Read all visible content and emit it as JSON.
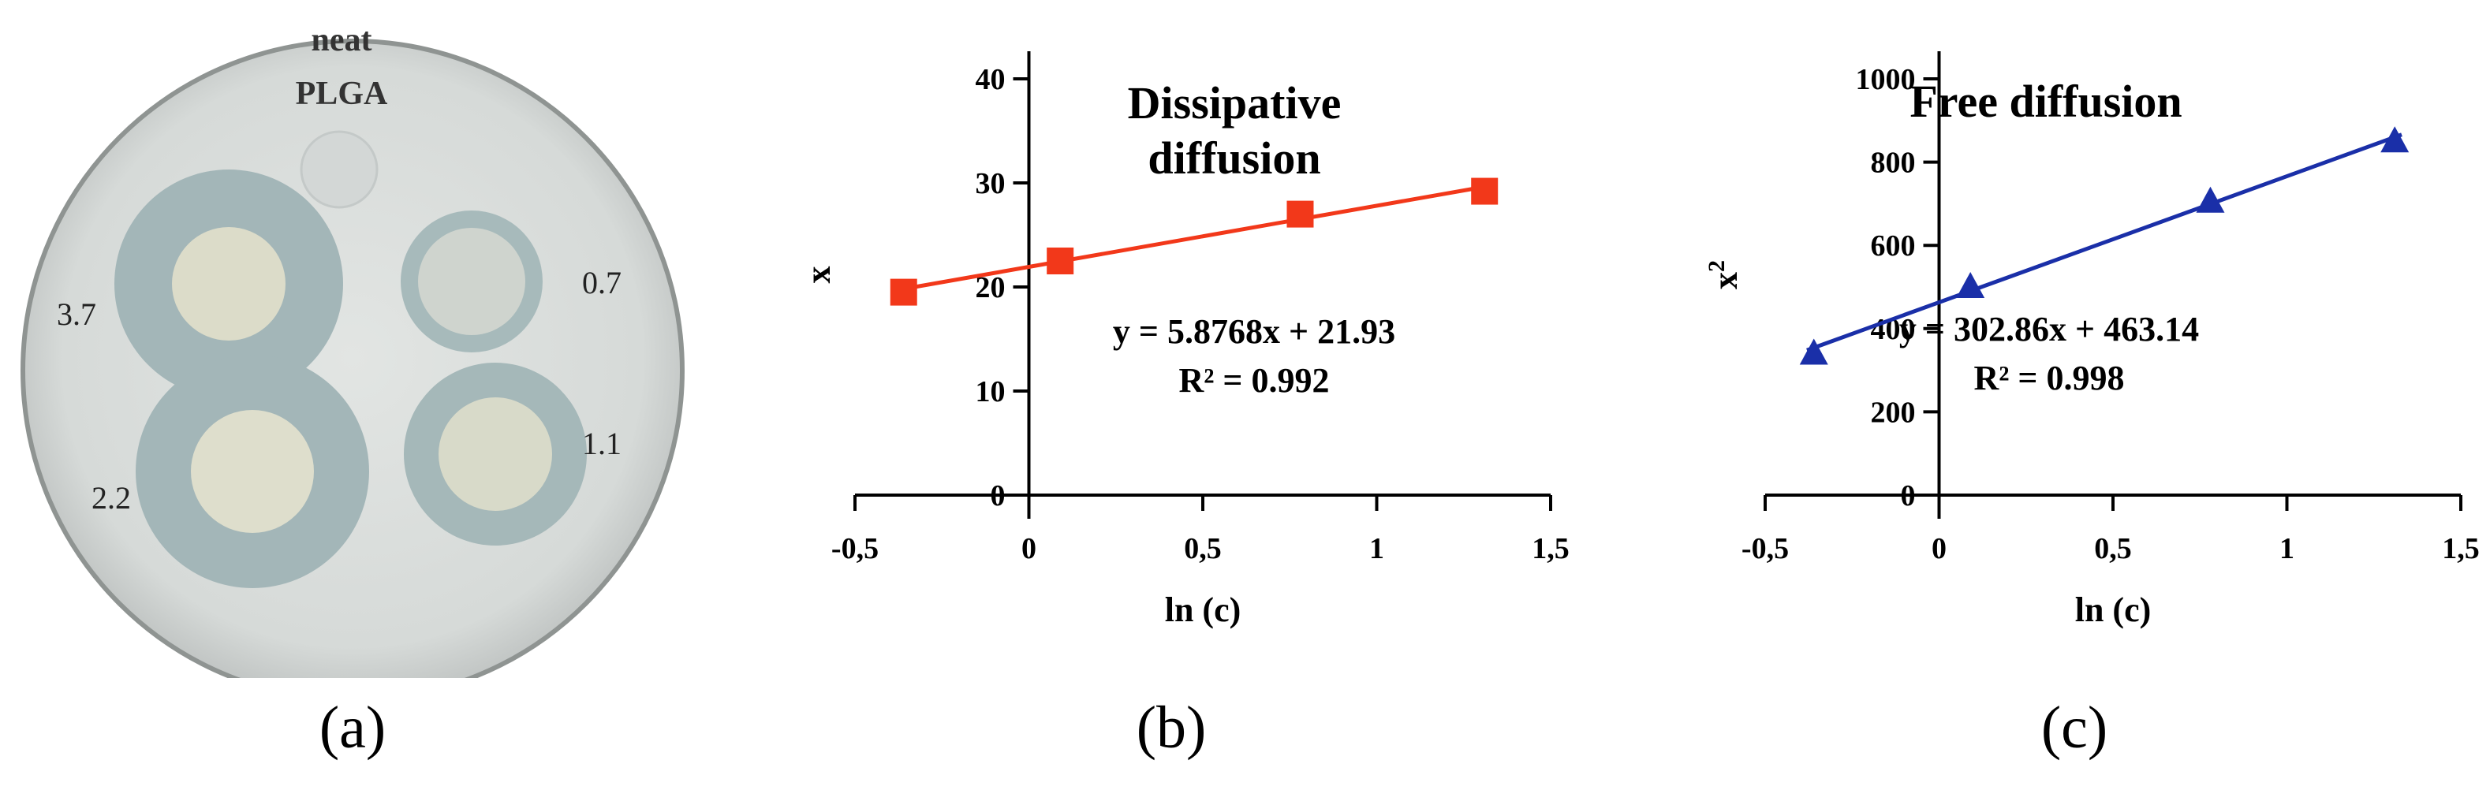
{
  "panel_a": {
    "caption": "(a)",
    "top_label_line1": "neat",
    "top_label_line2": "PLGA",
    "wells": [
      {
        "label": "3.7"
      },
      {
        "label": "0.7"
      },
      {
        "label": "2.2"
      },
      {
        "label": "1.1"
      }
    ]
  },
  "panel_b": {
    "caption": "(b)"
  },
  "panel_c": {
    "caption": "(c)"
  },
  "chart_data": [
    {
      "id": "b",
      "type": "scatter",
      "title_line1": "Dissipative",
      "title_line2": "diffusion",
      "xlabel": "ln (c)",
      "ylabel": "x",
      "ylabel_sup": "",
      "x_ticks": [
        "-0,5",
        "0",
        "0,5",
        "1",
        "1,5"
      ],
      "y_ticks": [
        "0",
        "10",
        "20",
        "30",
        "40"
      ],
      "xlim": [
        -0.5,
        1.5
      ],
      "ylim": [
        0,
        40
      ],
      "x": [
        -0.36,
        0.09,
        0.78,
        1.31
      ],
      "y": [
        19.5,
        22.5,
        27.0,
        29.2
      ],
      "trendline": {
        "slope": 5.8768,
        "intercept": 21.93
      },
      "equation": "y = 5.8768x + 21.93",
      "r2": "R² = 0.992",
      "marker": "square",
      "color": "#f2381a"
    },
    {
      "id": "c",
      "type": "scatter",
      "title_line1": "Free diffusion",
      "title_line2": "",
      "xlabel": "ln (c)",
      "ylabel": "x",
      "ylabel_sup": "2",
      "x_ticks": [
        "-0,5",
        "0",
        "0,5",
        "1",
        "1,5"
      ],
      "y_ticks": [
        "0",
        "200",
        "400",
        "600",
        "800",
        "1000"
      ],
      "xlim": [
        -0.5,
        1.5
      ],
      "ylim": [
        0,
        1000
      ],
      "x": [
        -0.36,
        0.09,
        0.78,
        1.31
      ],
      "y": [
        340,
        500,
        705,
        850
      ],
      "trendline": {
        "slope": 302.86,
        "intercept": 463.14
      },
      "equation": "y = 302.86x + 463.14",
      "r2": "R² = 0.998",
      "marker": "triangle",
      "color": "#1a2fa8"
    }
  ]
}
